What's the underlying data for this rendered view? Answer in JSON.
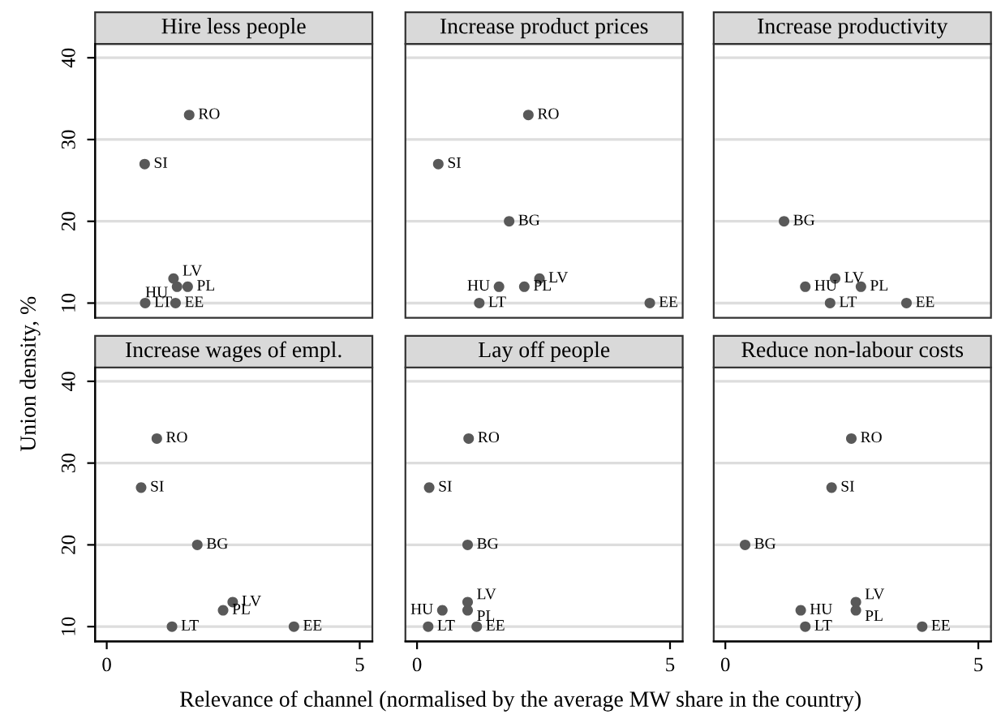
{
  "chart_data": [
    {
      "type": "scatter",
      "title": "Hire less people",
      "ylabel": "Union density, %",
      "xlim": [
        -0.23,
        5.25
      ],
      "ylim": [
        8.2,
        41.7
      ],
      "xticks": [
        0,
        5
      ],
      "yticks": [
        10,
        20,
        30,
        40
      ],
      "tick_labels": "y",
      "grid": "y",
      "marker": "circle",
      "series": [
        {
          "color": "#595959",
          "x": [
            1.63,
            0.75,
            1.32,
            1.39,
            1.6,
            0.76,
            1.36
          ],
          "values": [
            33,
            27,
            13,
            12,
            12,
            10,
            10
          ]
        }
      ],
      "annotations": [
        {
          "text": "RO",
          "x": 1.63,
          "y": 33
        },
        {
          "text": "SI",
          "x": 0.75,
          "y": 27
        },
        {
          "text": "LV",
          "x": 1.32,
          "y": 13
        },
        {
          "text": "HU",
          "x": 1.39,
          "y": 12
        },
        {
          "text": "PL",
          "x": 1.6,
          "y": 12
        },
        {
          "text": "LT",
          "x": 0.76,
          "y": 10
        },
        {
          "text": "EE",
          "x": 1.36,
          "y": 10
        }
      ]
    },
    {
      "type": "scatter",
      "title": "Increase product prices",
      "xlim": [
        -0.23,
        5.25
      ],
      "ylim": [
        8.2,
        41.7
      ],
      "xticks": [
        0,
        5
      ],
      "yticks": [
        10,
        20,
        30,
        40
      ],
      "tick_labels": false,
      "grid": "y",
      "marker": "circle",
      "series": [
        {
          "color": "#595959",
          "x": [
            2.2,
            0.42,
            1.82,
            2.42,
            1.62,
            2.12,
            1.23,
            4.6
          ],
          "values": [
            33,
            27,
            20,
            13,
            12,
            12,
            10,
            10
          ]
        }
      ],
      "annotations": [
        {
          "text": "RO",
          "x": 2.2,
          "y": 33
        },
        {
          "text": "SI",
          "x": 0.42,
          "y": 27
        },
        {
          "text": "BG",
          "x": 1.82,
          "y": 20
        },
        {
          "text": "LV",
          "x": 2.42,
          "y": 13
        },
        {
          "text": "HU",
          "x": 1.62,
          "y": 12
        },
        {
          "text": "PL",
          "x": 2.12,
          "y": 12
        },
        {
          "text": "LT",
          "x": 1.23,
          "y": 10
        },
        {
          "text": "EE",
          "x": 4.6,
          "y": 10
        }
      ]
    },
    {
      "type": "scatter",
      "title": "Increase productivity",
      "xlim": [
        -0.23,
        5.25
      ],
      "ylim": [
        8.2,
        41.7
      ],
      "xticks": [
        0,
        5
      ],
      "yticks": [
        10,
        20,
        30,
        40
      ],
      "tick_labels": false,
      "grid": "y",
      "marker": "circle",
      "series": [
        {
          "color": "#595959",
          "x": [
            1.16,
            2.17,
            1.58,
            2.68,
            2.07,
            3.58
          ],
          "values": [
            20,
            13,
            12,
            12,
            10,
            10
          ]
        }
      ],
      "annotations": [
        {
          "text": "BG",
          "x": 1.16,
          "y": 20
        },
        {
          "text": "LV",
          "x": 2.17,
          "y": 13
        },
        {
          "text": "HU",
          "x": 1.58,
          "y": 12
        },
        {
          "text": "PL",
          "x": 2.68,
          "y": 12
        },
        {
          "text": "LT",
          "x": 2.07,
          "y": 10
        },
        {
          "text": "EE",
          "x": 3.58,
          "y": 10
        }
      ]
    },
    {
      "type": "scatter",
      "title": "Increase wages of empl.",
      "xlabel": "Relevance of channel (normalised by the average MW share in the country)",
      "xlim": [
        -0.23,
        5.25
      ],
      "ylim": [
        8.2,
        41.7
      ],
      "xticks": [
        0,
        5
      ],
      "yticks": [
        10,
        20,
        30,
        40
      ],
      "grid": "y",
      "marker": "circle",
      "series": [
        {
          "color": "#595959",
          "x": [
            0.99,
            0.68,
            1.79,
            2.49,
            2.3,
            1.29,
            3.7
          ],
          "values": [
            33,
            27,
            20,
            13,
            12,
            10,
            10
          ]
        }
      ],
      "annotations": [
        {
          "text": "RO",
          "x": 0.99,
          "y": 33
        },
        {
          "text": "SI",
          "x": 0.68,
          "y": 27
        },
        {
          "text": "BG",
          "x": 1.79,
          "y": 20
        },
        {
          "text": "LV",
          "x": 2.49,
          "y": 13
        },
        {
          "text": "PL",
          "x": 2.3,
          "y": 12
        },
        {
          "text": "LT",
          "x": 1.29,
          "y": 10
        },
        {
          "text": "EE",
          "x": 3.7,
          "y": 10
        }
      ]
    },
    {
      "type": "scatter",
      "title": "Lay off people",
      "xlim": [
        -0.23,
        5.25
      ],
      "ylim": [
        8.2,
        41.7
      ],
      "xticks": [
        0,
        5
      ],
      "yticks": [
        10,
        20,
        30,
        40
      ],
      "tick_labels": "x",
      "grid": "y",
      "marker": "circle",
      "series": [
        {
          "color": "#595959",
          "x": [
            1.02,
            0.24,
            1.0,
            1.0,
            0.5,
            1.0,
            0.22,
            1.18
          ],
          "values": [
            33,
            27,
            20,
            13,
            12,
            12,
            10,
            10
          ]
        }
      ],
      "annotations": [
        {
          "text": "RO",
          "x": 1.02,
          "y": 33
        },
        {
          "text": "SI",
          "x": 0.24,
          "y": 27
        },
        {
          "text": "BG",
          "x": 1.0,
          "y": 20
        },
        {
          "text": "LV",
          "x": 1.0,
          "y": 13
        },
        {
          "text": "HU",
          "x": 0.5,
          "y": 12
        },
        {
          "text": "PL",
          "x": 1.0,
          "y": 12
        },
        {
          "text": "LT",
          "x": 0.22,
          "y": 10
        },
        {
          "text": "EE",
          "x": 1.18,
          "y": 10
        }
      ]
    },
    {
      "type": "scatter",
      "title": "Reduce non-labour costs",
      "xlim": [
        -0.23,
        5.25
      ],
      "ylim": [
        8.2,
        41.7
      ],
      "xticks": [
        0,
        5
      ],
      "yticks": [
        10,
        20,
        30,
        40
      ],
      "tick_labels": "x",
      "grid": "y",
      "marker": "circle",
      "series": [
        {
          "color": "#595959",
          "x": [
            2.49,
            2.1,
            0.39,
            2.58,
            1.49,
            2.58,
            1.58,
            3.89
          ],
          "values": [
            33,
            27,
            20,
            13,
            12,
            12,
            10,
            10
          ]
        }
      ],
      "annotations": [
        {
          "text": "RO",
          "x": 2.49,
          "y": 33
        },
        {
          "text": "SI",
          "x": 2.1,
          "y": 27
        },
        {
          "text": "BG",
          "x": 0.39,
          "y": 20
        },
        {
          "text": "LV",
          "x": 2.58,
          "y": 13
        },
        {
          "text": "HU",
          "x": 1.49,
          "y": 12
        },
        {
          "text": "PL",
          "x": 2.58,
          "y": 12
        },
        {
          "text": "LT",
          "x": 1.58,
          "y": 10
        },
        {
          "text": "EE",
          "x": 3.89,
          "y": 10
        }
      ]
    }
  ]
}
